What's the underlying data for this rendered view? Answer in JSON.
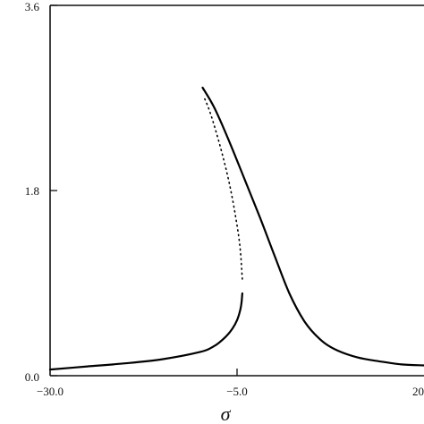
{
  "chart_data": {
    "type": "line",
    "title": "",
    "xlabel": "σ",
    "ylabel": "",
    "xlim": [
      -30.0,
      20.0
    ],
    "ylim": [
      0.0,
      3.6
    ],
    "x_ticks": [
      -30.0,
      -5.0,
      20.0
    ],
    "y_ticks": [
      0.0,
      1.8,
      3.6
    ],
    "x_tick_labels": [
      "−30.0",
      "−5.0",
      "20"
    ],
    "y_tick_labels": [
      "0.0",
      "1.8",
      "3.6"
    ],
    "grid": false,
    "legend": "none",
    "series": [
      {
        "style": "solid",
        "x": [
          -30.0,
          -25.0,
          -20.0,
          -15.0,
          -10.0,
          -8.0,
          -6.5,
          -5.6,
          -5.0,
          -4.6,
          -4.4,
          -4.3
        ],
        "y": [
          0.06,
          0.09,
          0.12,
          0.16,
          0.23,
          0.29,
          0.38,
          0.46,
          0.54,
          0.63,
          0.71,
          0.8
        ]
      },
      {
        "style": "dotted",
        "x": [
          -4.3,
          -4.6,
          -5.2,
          -6.0,
          -7.0,
          -8.0,
          -8.8,
          -9.5
        ],
        "y": [
          0.94,
          1.25,
          1.55,
          1.86,
          2.16,
          2.42,
          2.6,
          2.72
        ]
      },
      {
        "style": "solid",
        "x": [
          -9.6,
          -8.0,
          -6.0,
          -4.0,
          -2.0,
          0.0,
          2.0,
          4.0,
          6.0,
          8.0,
          11.0,
          14.0,
          17.0,
          20.0
        ],
        "y": [
          2.8,
          2.6,
          2.27,
          1.91,
          1.55,
          1.17,
          0.8,
          0.53,
          0.36,
          0.26,
          0.18,
          0.14,
          0.11,
          0.1
        ]
      }
    ]
  }
}
